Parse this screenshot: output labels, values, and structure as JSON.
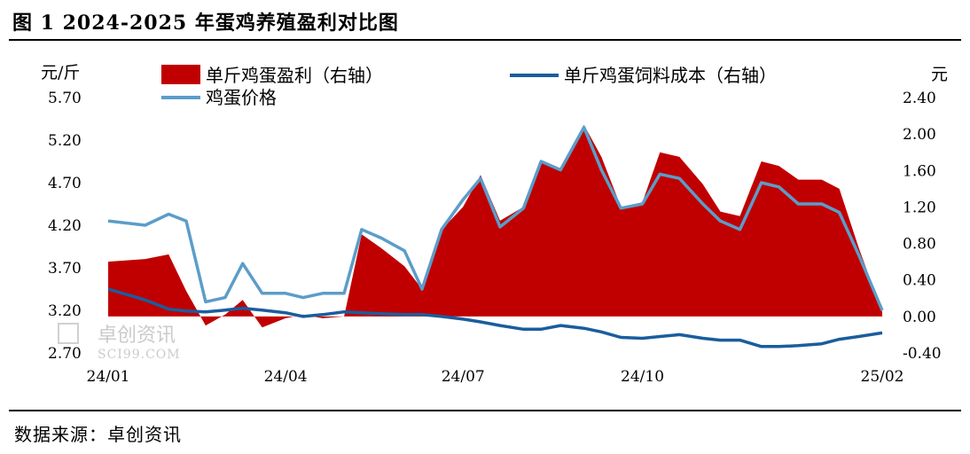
{
  "title": "图 1  2024-2025 年蛋鸡养殖盈利对比图",
  "source": "数据来源：卓创资讯",
  "watermark": {
    "text_cn": "卓创资讯",
    "text_en": "SCI99.COM"
  },
  "colors": {
    "profit": "#c00000",
    "cost": "#1a5d9e",
    "price": "#5b9dc9"
  },
  "chart_data": {
    "type": "area",
    "x_axis": {
      "ticks": [
        "24/01",
        "24/04",
        "24/07",
        "24/10",
        "25/02"
      ],
      "range": [
        "2024-01",
        "2025-02"
      ]
    },
    "y_left": {
      "unit": "元/斤",
      "range": [
        2.7,
        5.7
      ],
      "ticks": [
        "2.70",
        "3.20",
        "3.70",
        "4.20",
        "4.70",
        "5.20",
        "5.70"
      ]
    },
    "y_right": {
      "unit": "元",
      "range": [
        -0.4,
        2.4
      ],
      "ticks": [
        "-0.40",
        "0.00",
        "0.40",
        "0.80",
        "1.20",
        "1.60",
        "2.00",
        "2.40"
      ]
    },
    "legend": [
      {
        "name": "单斤鸡蛋盈利（右轴）",
        "style": "area"
      },
      {
        "name": "单斤鸡蛋饲料成本（右轴）",
        "style": "line"
      },
      {
        "name": "鸡蛋价格",
        "style": "line"
      }
    ],
    "x": [
      "2024-01-01",
      "2024-01-20",
      "2024-02-01",
      "2024-02-10",
      "2024-02-20",
      "2024-03-01",
      "2024-03-10",
      "2024-03-20",
      "2024-04-01",
      "2024-04-10",
      "2024-04-20",
      "2024-05-01",
      "2024-05-10",
      "2024-05-20",
      "2024-06-01",
      "2024-06-10",
      "2024-06-20",
      "2024-07-01",
      "2024-07-10",
      "2024-07-20",
      "2024-08-01",
      "2024-08-10",
      "2024-08-20",
      "2024-09-01",
      "2024-09-10",
      "2024-09-20",
      "2024-10-01",
      "2024-10-10",
      "2024-10-20",
      "2024-11-01",
      "2024-11-10",
      "2024-11-20",
      "2024-12-01",
      "2024-12-10",
      "2024-12-20",
      "2025-01-01",
      "2025-01-10",
      "2025-01-20",
      "2025-02-01"
    ],
    "series": [
      {
        "name": "单斤鸡蛋盈利（右轴）",
        "axis": "right",
        "values": [
          0.6,
          0.63,
          0.68,
          0.28,
          -0.1,
          0.02,
          0.18,
          -0.12,
          -0.02,
          0.02,
          -0.02,
          0.0,
          0.9,
          0.75,
          0.55,
          0.3,
          0.95,
          1.2,
          1.55,
          1.05,
          1.2,
          1.7,
          1.6,
          2.1,
          1.75,
          1.2,
          1.25,
          1.8,
          1.75,
          1.45,
          1.15,
          1.1,
          1.7,
          1.65,
          1.5,
          1.5,
          1.4,
          0.75,
          0.05
        ]
      },
      {
        "name": "单斤鸡蛋饲料成本（右轴）",
        "axis": "right",
        "values": [
          0.3,
          0.18,
          0.08,
          0.06,
          0.05,
          0.07,
          0.09,
          0.07,
          0.04,
          0.0,
          0.02,
          0.05,
          0.04,
          0.03,
          0.02,
          0.02,
          0.0,
          -0.03,
          -0.06,
          -0.1,
          -0.14,
          -0.14,
          -0.1,
          -0.13,
          -0.17,
          -0.23,
          -0.24,
          -0.22,
          -0.2,
          -0.24,
          -0.26,
          -0.26,
          -0.33,
          -0.33,
          -0.32,
          -0.3,
          -0.25,
          -0.22,
          -0.18
        ]
      },
      {
        "name": "鸡蛋价格",
        "axis": "left",
        "values": [
          4.25,
          4.2,
          4.33,
          4.25,
          3.3,
          3.35,
          3.75,
          3.4,
          3.4,
          3.35,
          3.4,
          3.4,
          4.15,
          4.05,
          3.9,
          3.45,
          4.15,
          4.5,
          4.75,
          4.18,
          4.4,
          4.95,
          4.85,
          5.35,
          4.85,
          4.4,
          4.45,
          4.8,
          4.75,
          4.45,
          4.25,
          4.15,
          4.7,
          4.65,
          4.45,
          4.45,
          4.35,
          3.85,
          3.2
        ]
      }
    ]
  }
}
